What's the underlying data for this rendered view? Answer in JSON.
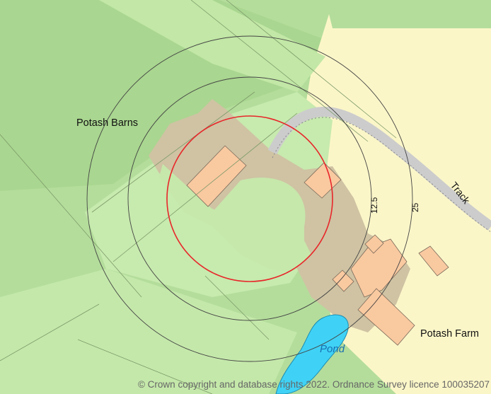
{
  "map": {
    "labels": {
      "barns": "Potash Barns",
      "farm": "Potash Farm",
      "track": "Track",
      "pond": "Pond"
    },
    "rings": {
      "inner": "12.5",
      "outer": "25"
    },
    "copyright": "© Crown copyright and database rights 2022. Ordnance Survey licence 100035207"
  },
  "colors": {
    "woodland": "#a6d492",
    "grass_light": "#c9ecb0",
    "field": "#c3e6a8",
    "yard": "#cfc3a3",
    "building": "#f9c9a0",
    "residential": "#fbf6c8",
    "track": "#cccccc",
    "water": "#3fd2f6",
    "buffer_red": "#e8262a",
    "buffer_dark": "#444444"
  }
}
